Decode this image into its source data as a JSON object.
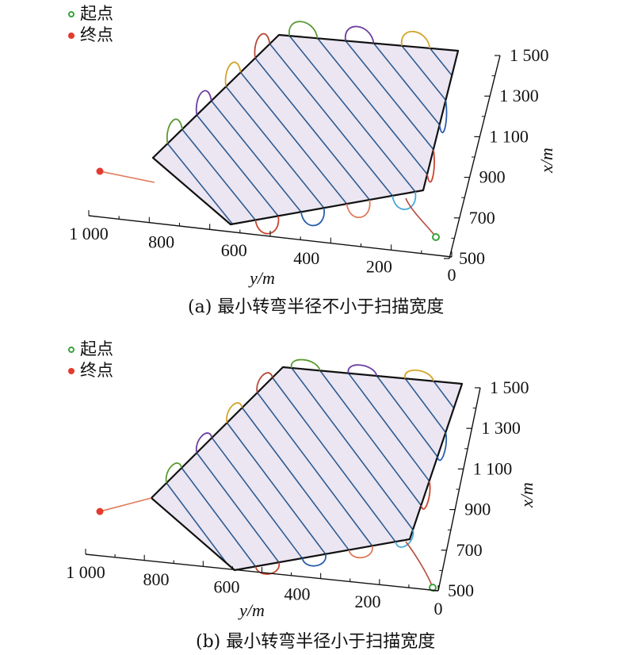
{
  "legend": {
    "start": "起点",
    "end": "终点"
  },
  "colors": {
    "field_fill": "#ebe6f2",
    "field_edge": "#111111",
    "sweep_line": "#2e5c93",
    "start_marker": "#3aa23a",
    "end_marker": "#e33b2f",
    "turn_colors": [
      "#d4a52a",
      "#2a5ea8",
      "#6c3ea0",
      "#c8452e",
      "#5c9b34",
      "#4aaad8",
      "#b64a3a",
      "#e07a5a"
    ]
  },
  "panels": [
    {
      "id": "a",
      "caption": "(a) 最小转弯半径不小于扫描宽度",
      "x_axis": {
        "title": "x/m",
        "ticks": [
          "1 500",
          "1 300",
          "1 100",
          "900",
          "700",
          "500"
        ]
      },
      "y_axis": {
        "title": "y/m",
        "ticks": [
          "1 000",
          "800",
          "600",
          "400",
          "200",
          "0"
        ]
      }
    },
    {
      "id": "b",
      "caption": "(b) 最小转弯半径小于扫描宽度",
      "x_axis": {
        "title": "x/m",
        "ticks": [
          "1 500",
          "1 300",
          "1 100",
          "900",
          "700",
          "500"
        ]
      },
      "y_axis": {
        "title": "y/m",
        "ticks": [
          "1 000",
          "800",
          "600",
          "400",
          "200",
          "0"
        ]
      }
    }
  ]
}
